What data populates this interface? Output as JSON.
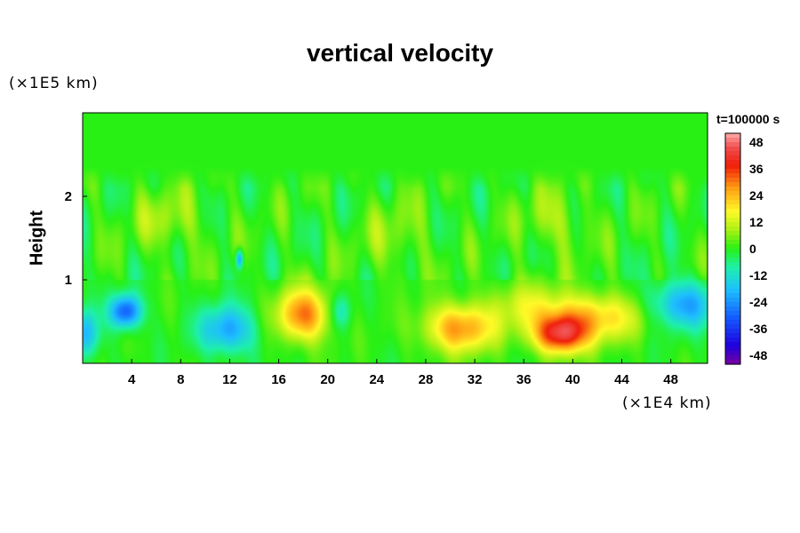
{
  "chart_data": {
    "type": "heatmap",
    "title": "vertical velocity",
    "ylabel": "Height",
    "y_unit": "(×1E5 km)",
    "x_unit": "(×1E4 km)",
    "time_label": "t=100000 s",
    "x_ticks": [
      4,
      8,
      12,
      16,
      20,
      24,
      28,
      32,
      36,
      40,
      44,
      48
    ],
    "y_ticks": [
      1,
      2
    ],
    "xlim": [
      0,
      51
    ],
    "ylim": [
      0,
      3
    ],
    "colorbar": {
      "ticks": [
        48,
        36,
        24,
        12,
        0,
        -12,
        -24,
        -36,
        -48
      ],
      "range": [
        -52,
        52
      ]
    },
    "background_value": 0,
    "features": [
      {
        "x": 39.0,
        "y": 0.34,
        "value": 38,
        "sx": 1.5,
        "sy": 0.16
      },
      {
        "x": 41.5,
        "y": 0.55,
        "value": 22,
        "sx": 3.0,
        "sy": 0.2
      },
      {
        "x": 18.0,
        "y": 0.58,
        "value": 30,
        "sx": 1.5,
        "sy": 0.22
      },
      {
        "x": 30.8,
        "y": 0.42,
        "value": 28,
        "sx": 2.0,
        "sy": 0.2
      },
      {
        "x": 36.0,
        "y": 0.72,
        "value": 10,
        "sx": 2.0,
        "sy": 0.2
      },
      {
        "x": 3.5,
        "y": 0.62,
        "value": -32,
        "sx": 0.9,
        "sy": 0.14
      },
      {
        "x": 11.8,
        "y": 0.4,
        "value": -22,
        "sx": 1.6,
        "sy": 0.2
      },
      {
        "x": 49.0,
        "y": 0.7,
        "value": -22,
        "sx": 2.0,
        "sy": 0.2
      },
      {
        "x": 21.0,
        "y": 0.62,
        "value": -12,
        "sx": 0.6,
        "sy": 0.15
      },
      {
        "x": 0.2,
        "y": 0.35,
        "value": -20,
        "sx": 0.8,
        "sy": 0.2
      },
      {
        "x": 7.0,
        "y": 1.7,
        "value": 8,
        "sx": 2.0,
        "sy": 0.25
      },
      {
        "x": 12.8,
        "y": 1.25,
        "value": -25,
        "sx": 0.2,
        "sy": 0.08
      },
      {
        "x": 25.5,
        "y": 1.5,
        "value": 6,
        "sx": 2.0,
        "sy": 0.3
      },
      {
        "x": 38.5,
        "y": 1.7,
        "value": 8,
        "sx": 1.8,
        "sy": 0.25
      }
    ]
  }
}
